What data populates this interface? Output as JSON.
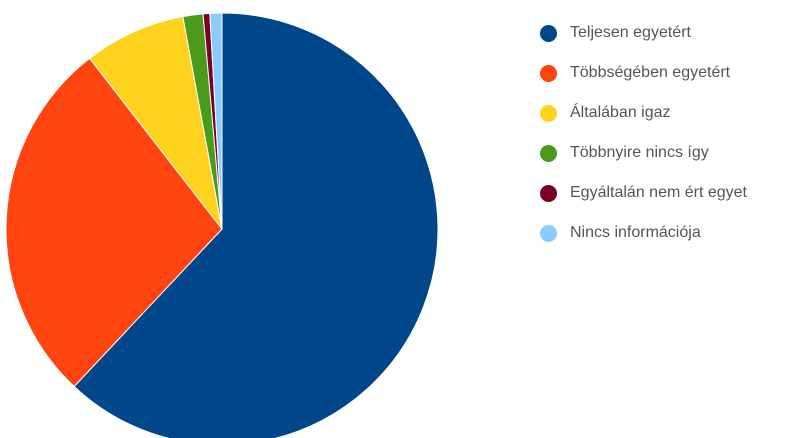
{
  "chart_data": {
    "type": "pie",
    "title": "",
    "start_angle_deg": 0,
    "direction": "clockwise",
    "legend_position": "right",
    "slices": [
      {
        "label": "Teljesen egyetért",
        "value": 62.0,
        "color": "#00468b"
      },
      {
        "label": "Többségében egyetért",
        "value": 27.5,
        "color": "#ff4410"
      },
      {
        "label": "Általában igaz",
        "value": 7.6,
        "color": "#ffd21e"
      },
      {
        "label": "Többnyire nincs így",
        "value": 1.5,
        "color": "#4a9a1c"
      },
      {
        "label": "Egyáltalán nem ért egyet",
        "value": 0.5,
        "color": "#7a0024"
      },
      {
        "label": "Nincs információja",
        "value": 0.9,
        "color": "#8ccbff"
      }
    ]
  }
}
